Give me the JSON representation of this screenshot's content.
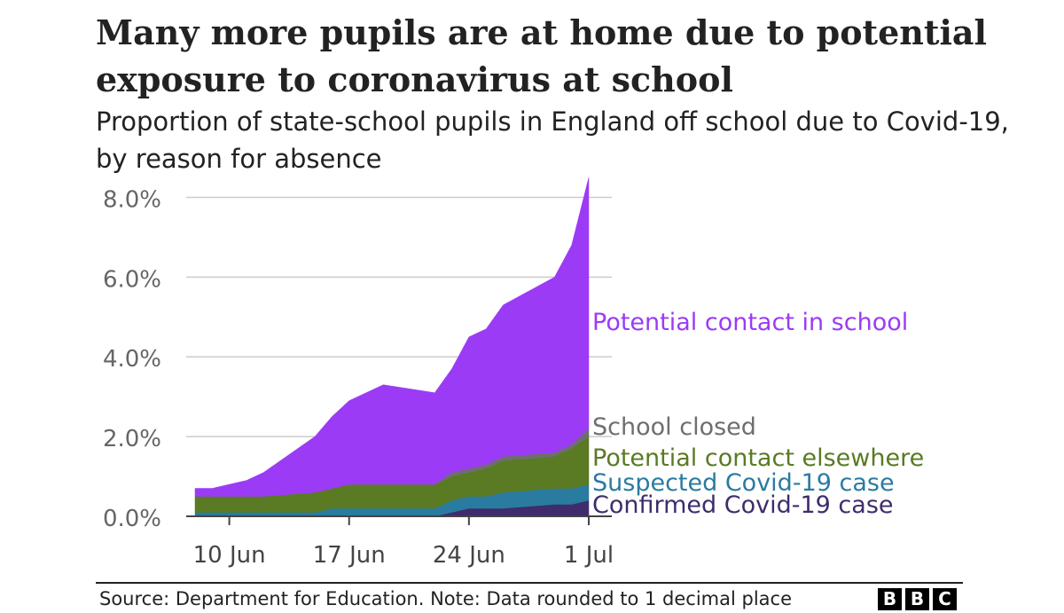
{
  "title": "Many more pupils are at home due to potential exposure to coronavirus at school",
  "subtitle": "Proportion of state-school pupils in England off school due to Covid-19, by reason for absence",
  "source": "Source: Department for Education. Note: Data rounded to 1 decimal place",
  "logo": [
    "B",
    "B",
    "C"
  ],
  "chart_data": {
    "type": "area",
    "stacked": true,
    "x": [
      "2020-06-08",
      "2020-06-09",
      "2020-06-10",
      "2020-06-11",
      "2020-06-12",
      "2020-06-15",
      "2020-06-16",
      "2020-06-17",
      "2020-06-18",
      "2020-06-19",
      "2020-06-22",
      "2020-06-23",
      "2020-06-24",
      "2020-06-25",
      "2020-06-26",
      "2020-06-29",
      "2020-06-30",
      "2020-07-01"
    ],
    "x_ticks": [
      {
        "date": "2020-06-10",
        "label": "10 Jun"
      },
      {
        "date": "2020-06-17",
        "label": "17 Jun"
      },
      {
        "date": "2020-06-24",
        "label": "24 Jun"
      },
      {
        "date": "2020-07-01",
        "label": "1 Jul"
      }
    ],
    "y_ticks": [
      {
        "value": 0,
        "label": "0.0%"
      },
      {
        "value": 2,
        "label": "2.0%"
      },
      {
        "value": 4,
        "label": "4.0%"
      },
      {
        "value": 6,
        "label": "6.0%"
      },
      {
        "value": 8,
        "label": "8.0%"
      }
    ],
    "ylim": [
      0,
      8.5
    ],
    "grid": true,
    "legend": "direct labels at right",
    "series": [
      {
        "name": "Confirmed Covid-19 case",
        "color": "#3f2c6c",
        "label_color": "#3f2c6c",
        "values": [
          0.0,
          0.0,
          0.0,
          0.0,
          0.0,
          0.0,
          0.0,
          0.0,
          0.0,
          0.0,
          0.0,
          0.1,
          0.2,
          0.2,
          0.2,
          0.3,
          0.3,
          0.4
        ]
      },
      {
        "name": "Suspected Covid-19 case",
        "color": "#2a7ba0",
        "label_color": "#2a7ba0",
        "values": [
          0.1,
          0.1,
          0.1,
          0.1,
          0.1,
          0.1,
          0.2,
          0.2,
          0.2,
          0.2,
          0.2,
          0.3,
          0.3,
          0.3,
          0.4,
          0.4,
          0.4,
          0.4
        ]
      },
      {
        "name": "Potential contact elsewhere",
        "color": "#5a7a23",
        "label_color": "#5a7a23",
        "values": [
          0.4,
          0.4,
          0.4,
          0.4,
          0.4,
          0.5,
          0.5,
          0.6,
          0.6,
          0.6,
          0.6,
          0.6,
          0.6,
          0.7,
          0.8,
          0.8,
          1.0,
          1.2
        ]
      },
      {
        "name": "School closed",
        "color": "#6e6e6e",
        "label_color": "#6e6e6e",
        "values": [
          0.0,
          0.0,
          0.0,
          0.0,
          0.0,
          0.0,
          0.0,
          0.0,
          0.0,
          0.0,
          0.0,
          0.1,
          0.1,
          0.1,
          0.1,
          0.1,
          0.1,
          0.2
        ]
      },
      {
        "name": "Potential contact in school",
        "color": "#9b3bf5",
        "label_color": "#9b3bf5",
        "values": [
          0.2,
          0.2,
          0.3,
          0.4,
          0.6,
          1.4,
          1.8,
          2.1,
          2.3,
          2.5,
          2.3,
          2.6,
          3.3,
          3.4,
          3.8,
          4.4,
          5.0,
          6.3
        ]
      }
    ]
  }
}
